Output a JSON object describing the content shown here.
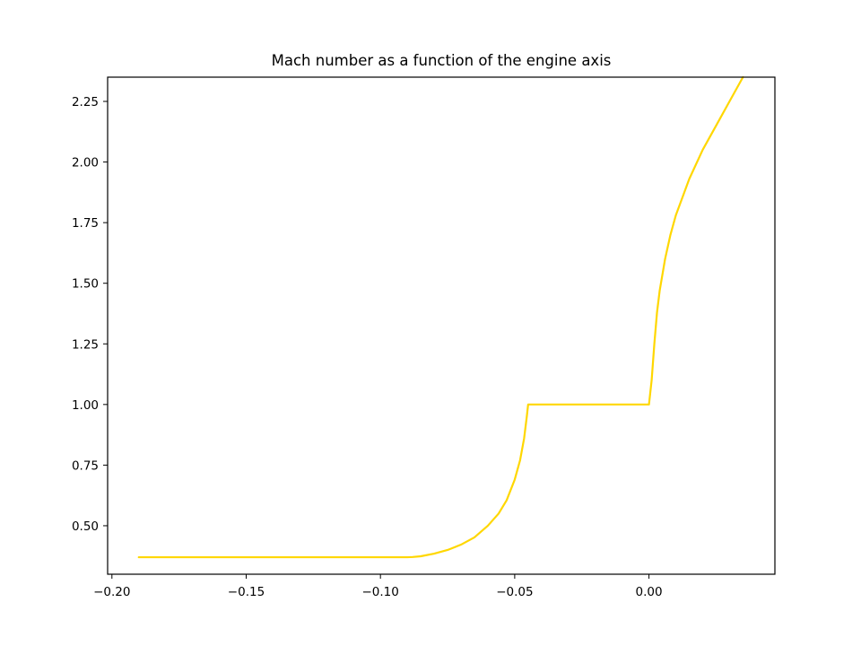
{
  "chart_data": {
    "type": "line",
    "title": "Mach number as a function of the engine axis",
    "xlabel": "",
    "ylabel": "",
    "xlim": [
      -0.2016,
      0.0469
    ],
    "ylim": [
      0.3,
      2.35
    ],
    "xticks": [
      -0.2,
      -0.15,
      -0.1,
      -0.05,
      0.0
    ],
    "xtick_labels": [
      "−0.20",
      "−0.15",
      "−0.10",
      "−0.05",
      "0.00"
    ],
    "yticks": [
      0.5,
      0.75,
      1.0,
      1.25,
      1.5,
      1.75,
      2.0,
      2.25
    ],
    "ytick_labels": [
      "0.50",
      "0.75",
      "1.00",
      "1.25",
      "1.50",
      "1.75",
      "2.00",
      "2.25"
    ],
    "grid": false,
    "legend": "none",
    "series": [
      {
        "color": "#FFD700",
        "x": [
          -0.19,
          -0.17,
          -0.15,
          -0.13,
          -0.11,
          -0.1,
          -0.095,
          -0.09,
          -0.088,
          -0.085,
          -0.08,
          -0.075,
          -0.07,
          -0.065,
          -0.06,
          -0.056,
          -0.053,
          -0.05,
          -0.048,
          -0.0465,
          -0.0455,
          -0.045,
          -0.04,
          -0.03,
          -0.02,
          -0.01,
          -0.001,
          0.0,
          0.001,
          0.002,
          0.003,
          0.004,
          0.006,
          0.008,
          0.01,
          0.015,
          0.02,
          0.025,
          0.03,
          0.035
        ],
        "y": [
          0.37,
          0.37,
          0.37,
          0.37,
          0.37,
          0.37,
          0.37,
          0.37,
          0.371,
          0.374,
          0.385,
          0.4,
          0.422,
          0.452,
          0.5,
          0.55,
          0.605,
          0.69,
          0.77,
          0.86,
          0.95,
          1.0,
          1.0,
          1.0,
          1.0,
          1.0,
          1.0,
          1.0,
          1.1,
          1.25,
          1.38,
          1.47,
          1.6,
          1.7,
          1.78,
          1.93,
          2.05,
          2.15,
          2.25,
          2.35
        ]
      }
    ]
  }
}
